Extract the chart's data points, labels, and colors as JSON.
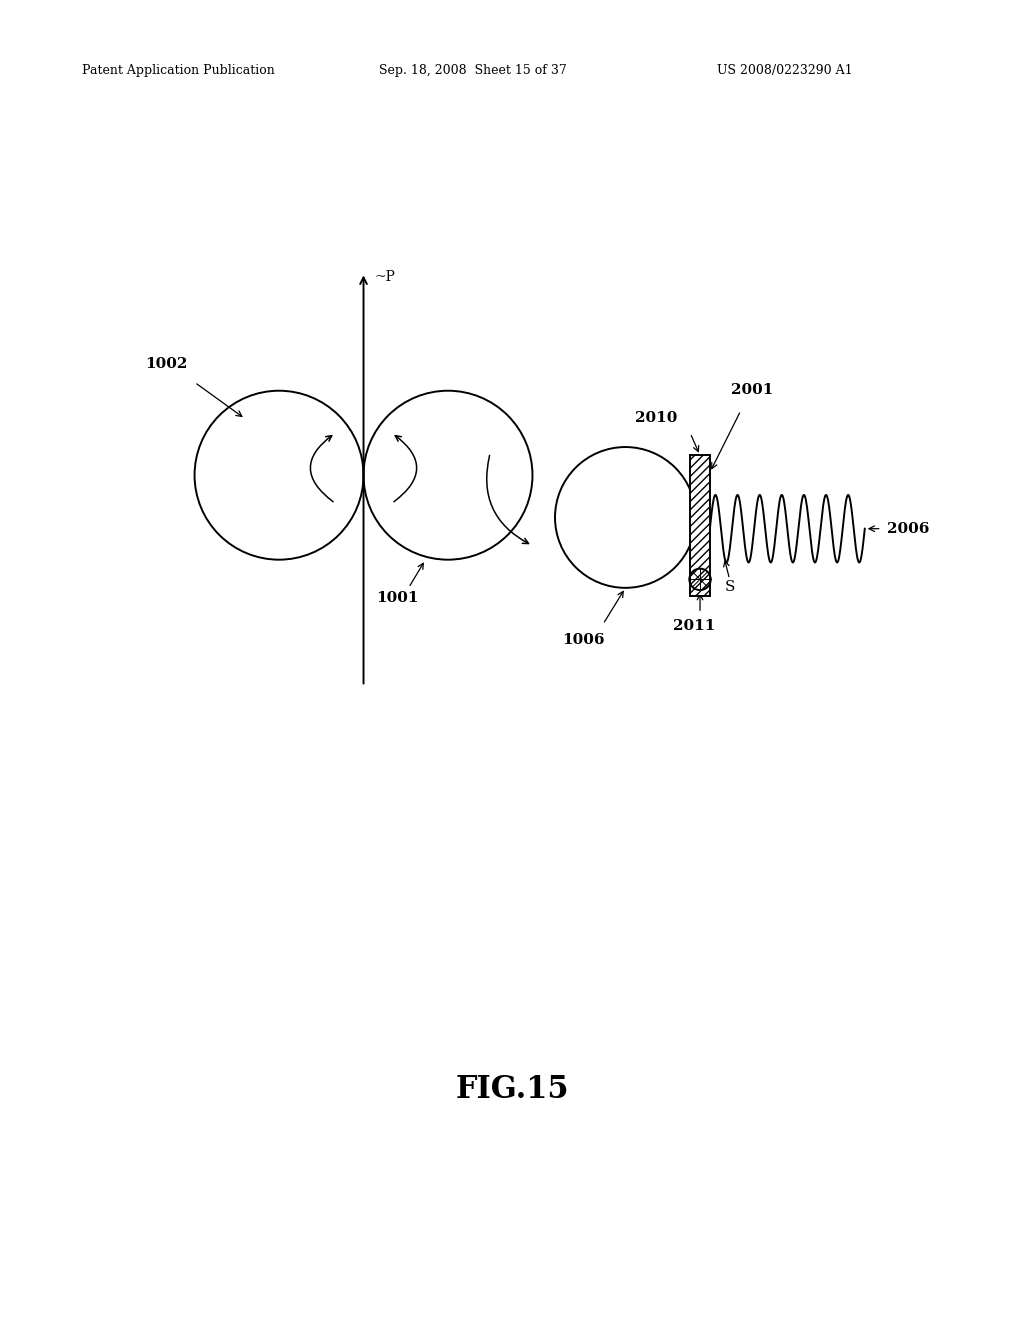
{
  "background_color": "#ffffff",
  "header_left": "Patent Application Publication",
  "header_mid": "Sep. 18, 2008  Sheet 15 of 37",
  "header_right": "US 2008/0223290 A1",
  "figure_label": "FIG.15",
  "page_width": 10.24,
  "page_height": 13.2
}
